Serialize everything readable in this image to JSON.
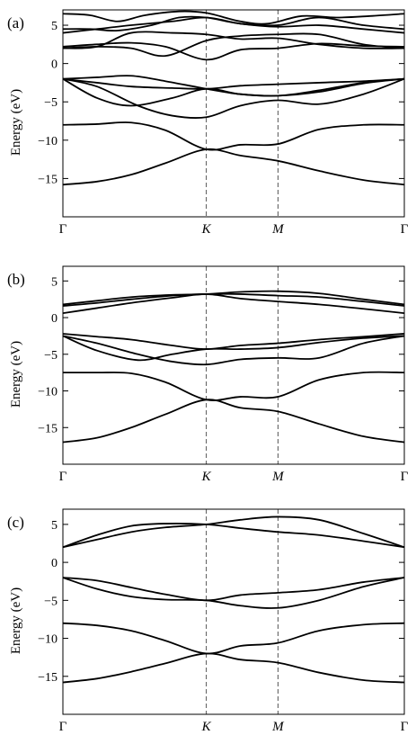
{
  "chart_data": [
    {
      "type": "line",
      "panel_label": "(a)",
      "ylabel": "Energy (eV)",
      "ylim": [
        -20,
        7
      ],
      "yticks": [
        5,
        0,
        -5,
        -10,
        -15
      ],
      "ytick_labels": [
        "5",
        "0",
        "−5",
        "−10",
        "−15"
      ],
      "x_high_symmetry": [
        {
          "k": 0,
          "label": "Γ"
        },
        {
          "k": 0.42,
          "label": "K"
        },
        {
          "k": 0.63,
          "label": "M"
        },
        {
          "k": 1,
          "label": "Γ"
        }
      ],
      "series": [
        {
          "x": [
            0,
            0.1,
            0.2,
            0.3,
            0.42,
            0.52,
            0.63,
            0.75,
            0.88,
            1
          ],
          "y": [
            -15.8,
            -15.4,
            -14.5,
            -13.0,
            -11.2,
            -12.0,
            -12.7,
            -14.0,
            -15.2,
            -15.8
          ]
        },
        {
          "x": [
            0,
            0.1,
            0.2,
            0.3,
            0.42,
            0.52,
            0.63,
            0.75,
            0.88,
            1
          ],
          "y": [
            -8.0,
            -7.9,
            -7.7,
            -8.7,
            -11.2,
            -10.6,
            -10.5,
            -8.6,
            -8.0,
            -8.0
          ]
        },
        {
          "x": [
            0,
            0.1,
            0.22,
            0.32,
            0.42,
            0.52,
            0.63,
            0.75,
            0.88,
            1
          ],
          "y": [
            -2.0,
            -3.0,
            -5.5,
            -6.8,
            -7.0,
            -5.5,
            -4.8,
            -5.3,
            -4.0,
            -2.0
          ]
        },
        {
          "x": [
            0,
            0.1,
            0.2,
            0.32,
            0.42,
            0.52,
            0.63,
            0.75,
            0.88,
            1
          ],
          "y": [
            -2.0,
            -4.5,
            -5.5,
            -4.5,
            -3.3,
            -4.0,
            -4.2,
            -3.7,
            -2.6,
            -2.0
          ]
        },
        {
          "x": [
            0,
            0.1,
            0.2,
            0.32,
            0.42,
            0.52,
            0.63,
            0.75,
            0.88,
            1
          ],
          "y": [
            -2.0,
            -2.5,
            -3.0,
            -3.2,
            -3.3,
            -2.9,
            -2.7,
            -2.5,
            -2.3,
            -2.0
          ]
        },
        {
          "x": [
            0,
            0.1,
            0.2,
            0.3,
            0.42,
            0.52,
            0.63,
            0.75,
            0.88,
            1
          ],
          "y": [
            -2.0,
            -1.8,
            -1.6,
            -2.3,
            -3.3,
            -4.0,
            -4.2,
            -3.5,
            -2.5,
            -2.0
          ]
        },
        {
          "x": [
            0,
            0.1,
            0.2,
            0.3,
            0.42,
            0.52,
            0.63,
            0.75,
            0.88,
            1
          ],
          "y": [
            2.0,
            2.2,
            2.0,
            1.0,
            3.0,
            3.6,
            3.8,
            3.8,
            2.5,
            2.0
          ]
        },
        {
          "x": [
            0,
            0.1,
            0.2,
            0.3,
            0.42,
            0.52,
            0.63,
            0.75,
            0.88,
            1
          ],
          "y": [
            2.2,
            2.5,
            2.7,
            2.2,
            0.5,
            1.8,
            2.0,
            2.6,
            2.3,
            2.2
          ]
        },
        {
          "x": [
            0,
            0.1,
            0.2,
            0.32,
            0.42,
            0.52,
            0.63,
            0.75,
            0.88,
            1
          ],
          "y": [
            2.0,
            2.2,
            4.0,
            4.0,
            3.8,
            3.2,
            3.3,
            2.5,
            2.0,
            2.0
          ]
        },
        {
          "x": [
            0,
            0.1,
            0.2,
            0.32,
            0.42,
            0.52,
            0.63,
            0.75,
            0.88,
            1
          ],
          "y": [
            4.0,
            4.5,
            5.0,
            5.5,
            6.0,
            5.2,
            4.8,
            5.0,
            4.5,
            4.0
          ]
        },
        {
          "x": [
            0,
            0.08,
            0.16,
            0.26,
            0.34,
            0.42,
            0.52,
            0.63,
            0.75,
            0.88,
            1
          ],
          "y": [
            4.5,
            4.5,
            4.3,
            5.0,
            6.0,
            6.0,
            5.2,
            5.0,
            6.0,
            5.0,
            4.5
          ]
        },
        {
          "x": [
            0,
            0.08,
            0.16,
            0.24,
            0.34,
            0.42,
            0.52,
            0.6,
            0.7,
            0.8,
            0.9,
            1
          ],
          "y": [
            6.5,
            6.3,
            5.5,
            6.3,
            6.8,
            6.6,
            5.5,
            5.2,
            6.2,
            6.0,
            6.2,
            6.5
          ]
        }
      ]
    },
    {
      "type": "line",
      "panel_label": "(b)",
      "ylabel": "Energy (eV)",
      "ylim": [
        -20,
        7
      ],
      "yticks": [
        5,
        0,
        -5,
        -10,
        -15
      ],
      "ytick_labels": [
        "5",
        "0",
        "−5",
        "−10",
        "−15"
      ],
      "x_high_symmetry": [
        {
          "k": 0,
          "label": "Γ"
        },
        {
          "k": 0.42,
          "label": "K"
        },
        {
          "k": 0.63,
          "label": "M"
        },
        {
          "k": 1,
          "label": "Γ"
        }
      ],
      "series": [
        {
          "x": [
            0,
            0.1,
            0.2,
            0.3,
            0.42,
            0.52,
            0.63,
            0.75,
            0.88,
            1
          ],
          "y": [
            -17.0,
            -16.4,
            -15.0,
            -13.2,
            -11.2,
            -12.3,
            -12.8,
            -14.5,
            -16.2,
            -17.0
          ]
        },
        {
          "x": [
            0,
            0.1,
            0.2,
            0.3,
            0.42,
            0.52,
            0.63,
            0.75,
            0.88,
            1
          ],
          "y": [
            -7.5,
            -7.5,
            -7.6,
            -8.8,
            -11.2,
            -10.8,
            -10.8,
            -8.5,
            -7.5,
            -7.5
          ]
        },
        {
          "x": [
            0,
            0.1,
            0.22,
            0.32,
            0.42,
            0.52,
            0.63,
            0.75,
            0.88,
            1
          ],
          "y": [
            -2.5,
            -3.5,
            -5.0,
            -6.0,
            -6.4,
            -5.7,
            -5.5,
            -5.5,
            -3.5,
            -2.5
          ]
        },
        {
          "x": [
            0,
            0.1,
            0.22,
            0.32,
            0.42,
            0.52,
            0.63,
            0.75,
            0.88,
            1
          ],
          "y": [
            -2.5,
            -4.5,
            -5.8,
            -5.0,
            -4.3,
            -4.3,
            -4.1,
            -3.4,
            -2.8,
            -2.5
          ]
        },
        {
          "x": [
            0,
            0.1,
            0.2,
            0.32,
            0.42,
            0.52,
            0.63,
            0.75,
            0.88,
            1
          ],
          "y": [
            -2.2,
            -2.6,
            -3.0,
            -3.8,
            -4.3,
            -3.8,
            -3.5,
            -3.0,
            -2.6,
            -2.2
          ]
        },
        {
          "x": [
            0,
            0.1,
            0.2,
            0.32,
            0.42,
            0.52,
            0.63,
            0.75,
            0.88,
            1
          ],
          "y": [
            0.6,
            1.3,
            2.0,
            2.7,
            3.2,
            2.6,
            2.2,
            1.8,
            1.2,
            0.6
          ]
        },
        {
          "x": [
            0,
            0.1,
            0.2,
            0.32,
            0.42,
            0.52,
            0.63,
            0.75,
            0.88,
            1
          ],
          "y": [
            1.6,
            2.0,
            2.5,
            3.0,
            3.2,
            3.2,
            3.0,
            2.8,
            2.2,
            1.6
          ]
        },
        {
          "x": [
            0,
            0.1,
            0.2,
            0.32,
            0.42,
            0.52,
            0.63,
            0.75,
            0.88,
            1
          ],
          "y": [
            1.8,
            2.3,
            2.8,
            3.1,
            3.2,
            3.5,
            3.6,
            3.3,
            2.5,
            1.8
          ]
        }
      ]
    },
    {
      "type": "line",
      "panel_label": "(c)",
      "ylabel": "Energy (eV)",
      "ylim": [
        -20,
        7
      ],
      "yticks": [
        5,
        0,
        -5,
        -10,
        -15
      ],
      "ytick_labels": [
        "5",
        "0",
        "−5",
        "−10",
        "−15"
      ],
      "x_high_symmetry": [
        {
          "k": 0,
          "label": "Γ"
        },
        {
          "k": 0.42,
          "label": "K"
        },
        {
          "k": 0.63,
          "label": "M"
        },
        {
          "k": 1,
          "label": "Γ"
        }
      ],
      "series": [
        {
          "x": [
            0,
            0.1,
            0.2,
            0.3,
            0.42,
            0.52,
            0.63,
            0.75,
            0.88,
            1
          ],
          "y": [
            -15.8,
            -15.3,
            -14.4,
            -13.3,
            -12.0,
            -12.8,
            -13.2,
            -14.5,
            -15.5,
            -15.8
          ]
        },
        {
          "x": [
            0,
            0.1,
            0.2,
            0.3,
            0.42,
            0.52,
            0.63,
            0.75,
            0.88,
            1
          ],
          "y": [
            -8.0,
            -8.3,
            -9.0,
            -10.3,
            -12.0,
            -11.0,
            -10.6,
            -9.0,
            -8.2,
            -8.0
          ]
        },
        {
          "x": [
            0,
            0.1,
            0.2,
            0.3,
            0.42,
            0.52,
            0.63,
            0.75,
            0.88,
            1
          ],
          "y": [
            -2.0,
            -3.5,
            -4.5,
            -4.9,
            -5.0,
            -5.7,
            -6.0,
            -5.0,
            -3.2,
            -2.0
          ]
        },
        {
          "x": [
            0,
            0.1,
            0.2,
            0.3,
            0.42,
            0.52,
            0.63,
            0.75,
            0.88,
            1
          ],
          "y": [
            -2.0,
            -2.4,
            -3.3,
            -4.2,
            -5.0,
            -4.3,
            -4.0,
            -3.6,
            -2.6,
            -2.0
          ]
        },
        {
          "x": [
            0,
            0.1,
            0.2,
            0.3,
            0.42,
            0.52,
            0.63,
            0.75,
            0.88,
            1
          ],
          "y": [
            2.0,
            3.0,
            4.0,
            4.6,
            5.0,
            5.6,
            6.0,
            5.6,
            3.8,
            2.0
          ]
        },
        {
          "x": [
            0,
            0.1,
            0.2,
            0.3,
            0.42,
            0.52,
            0.63,
            0.75,
            0.88,
            1
          ],
          "y": [
            2.0,
            3.6,
            4.8,
            5.1,
            5.0,
            4.5,
            4.0,
            3.6,
            2.8,
            2.0
          ]
        }
      ]
    }
  ]
}
